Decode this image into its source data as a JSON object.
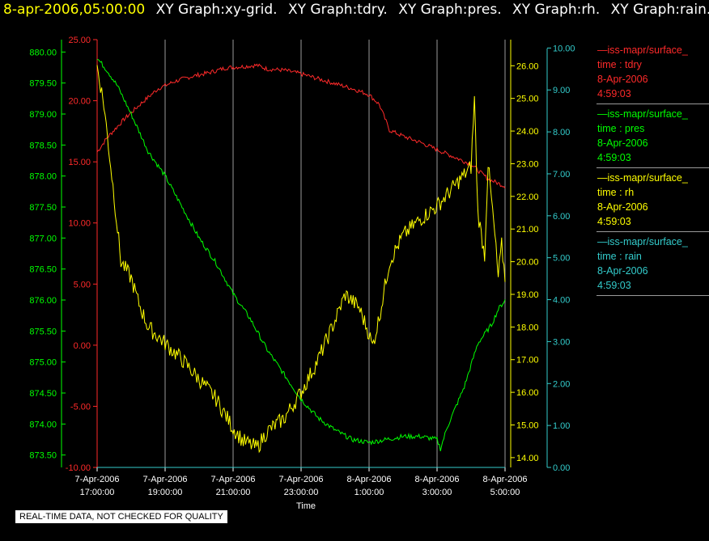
{
  "title": {
    "datetime": "8-apr-2006,05:00:00",
    "graphs": [
      "XY Graph:xy-grid.",
      "XY Graph:tdry.",
      "XY Graph:pres.",
      "XY Graph:rh.",
      "XY Graph:rain."
    ]
  },
  "colors": {
    "datetime": "#ffff00",
    "graph_title": "#ffffff",
    "tdry": "#ff2a2a",
    "pres": "#00ff00",
    "rh": "#ffff00",
    "rain": "#33cccc",
    "grid": "#9a9a9a",
    "background": "#000000"
  },
  "legend": [
    {
      "line1": "—iss-mapr/surface_",
      "line2": "time : tdry",
      "line3": "8-Apr-2006",
      "line4": "4:59:03",
      "color": "#ff2a2a"
    },
    {
      "line1": "—iss-mapr/surface_",
      "line2": "time : pres",
      "line3": "8-Apr-2006",
      "line4": "4:59:03",
      "color": "#00ff00"
    },
    {
      "line1": "—iss-mapr/surface_",
      "line2": "time : rh",
      "line3": "8-Apr-2006",
      "line4": "4:59:03",
      "color": "#ffff00"
    },
    {
      "line1": "—iss-mapr/surface_",
      "line2": "time : rain",
      "line3": "8-Apr-2006",
      "line4": "4:59:03",
      "color": "#33cccc"
    }
  ],
  "qc_note": "REAL-TIME DATA, NOT CHECKED FOR QUALITY",
  "chart_data": {
    "type": "line",
    "xlabel": "Time",
    "x_ticks": [
      {
        "date": "7-Apr-2006",
        "time": "17:00:00",
        "hours": 0
      },
      {
        "date": "7-Apr-2006",
        "time": "19:00:00",
        "hours": 2
      },
      {
        "date": "7-Apr-2006",
        "time": "21:00:00",
        "hours": 4
      },
      {
        "date": "7-Apr-2006",
        "time": "23:00:00",
        "hours": 6
      },
      {
        "date": "8-Apr-2006",
        "time": "1:00:00",
        "hours": 8
      },
      {
        "date": "8-Apr-2006",
        "time": "3:00:00",
        "hours": 10
      },
      {
        "date": "8-Apr-2006",
        "time": "5:00:00",
        "hours": 12
      }
    ],
    "xlim_hours": [
      0,
      12
    ],
    "grid": "vertical",
    "axes": {
      "tdry": {
        "ylim": [
          -10,
          25
        ],
        "ticks": [
          "25.00",
          "20.00",
          "15.00",
          "10.00",
          "5.00",
          "0.00",
          "-5.00",
          "-10.00"
        ]
      },
      "pres": {
        "ylim": [
          873.3,
          880.2
        ],
        "ticks": [
          "880.00",
          "879.50",
          "879.00",
          "878.50",
          "878.00",
          "877.50",
          "877.00",
          "876.50",
          "876.00",
          "875.50",
          "875.00",
          "874.50",
          "874.00",
          "873.50"
        ]
      },
      "rh": {
        "ylim": [
          13.7,
          26.8
        ],
        "ticks": [
          "26.00",
          "25.00",
          "24.00",
          "23.00",
          "22.00",
          "21.00",
          "20.00",
          "19.00",
          "18.00",
          "17.00",
          "16.00",
          "15.00",
          "14.00"
        ]
      },
      "rain": {
        "ylim": [
          0,
          10.2
        ],
        "ticks": [
          "10.00",
          "9.00",
          "8.00",
          "7.00",
          "6.00",
          "5.00",
          "4.00",
          "3.00",
          "2.00",
          "1.00",
          "0.00"
        ]
      }
    },
    "series": [
      {
        "key": "tdry",
        "name": "time : tdry",
        "noise": 0.18,
        "points": [
          [
            0,
            15.8
          ],
          [
            0.3,
            17.0
          ],
          [
            0.8,
            18.5
          ],
          [
            1.3,
            19.8
          ],
          [
            1.8,
            21.0
          ],
          [
            2.3,
            21.6
          ],
          [
            2.8,
            22.0
          ],
          [
            3.3,
            22.3
          ],
          [
            3.8,
            22.7
          ],
          [
            4.3,
            22.8
          ],
          [
            4.7,
            22.9
          ],
          [
            5.0,
            22.6
          ],
          [
            5.5,
            22.5
          ],
          [
            6.0,
            22.2
          ],
          [
            6.5,
            21.8
          ],
          [
            7.0,
            21.4
          ],
          [
            7.5,
            21.0
          ],
          [
            8.0,
            20.5
          ],
          [
            8.3,
            19.7
          ],
          [
            8.6,
            17.6
          ],
          [
            9.0,
            17.1
          ],
          [
            9.5,
            16.6
          ],
          [
            10.0,
            16.0
          ],
          [
            10.5,
            15.4
          ],
          [
            11.0,
            14.8
          ],
          [
            11.5,
            13.6
          ],
          [
            12.0,
            13.0
          ]
        ]
      },
      {
        "key": "pres",
        "name": "time : pres",
        "noise": 0.04,
        "points": [
          [
            0,
            879.9
          ],
          [
            0.3,
            879.7
          ],
          [
            0.6,
            879.45
          ],
          [
            1.0,
            879.0
          ],
          [
            1.5,
            878.4
          ],
          [
            2.0,
            878.0
          ],
          [
            2.5,
            877.5
          ],
          [
            3.0,
            877.0
          ],
          [
            3.5,
            876.6
          ],
          [
            4.0,
            876.1
          ],
          [
            4.5,
            875.7
          ],
          [
            5.0,
            875.2
          ],
          [
            5.5,
            874.8
          ],
          [
            6.0,
            874.4
          ],
          [
            6.5,
            874.1
          ],
          [
            7.0,
            873.9
          ],
          [
            7.5,
            873.75
          ],
          [
            8.0,
            873.7
          ],
          [
            8.5,
            873.75
          ],
          [
            9.0,
            873.8
          ],
          [
            9.5,
            873.8
          ],
          [
            10.0,
            873.75
          ],
          [
            10.1,
            873.6
          ],
          [
            10.3,
            873.95
          ],
          [
            10.8,
            874.6
          ],
          [
            11.2,
            875.3
          ],
          [
            11.6,
            875.6
          ],
          [
            11.8,
            875.85
          ],
          [
            12.0,
            876.0
          ]
        ]
      },
      {
        "key": "rh",
        "name": "time : rh",
        "noise": 0.25,
        "points": [
          [
            0,
            26.0
          ],
          [
            0.2,
            24.8
          ],
          [
            0.5,
            22.0
          ],
          [
            0.7,
            20.0
          ],
          [
            1.0,
            19.5
          ],
          [
            1.2,
            18.8
          ],
          [
            1.5,
            18.0
          ],
          [
            2.0,
            17.5
          ],
          [
            2.5,
            17.0
          ],
          [
            3.0,
            16.4
          ],
          [
            3.5,
            15.8
          ],
          [
            4.0,
            14.9
          ],
          [
            4.3,
            14.5
          ],
          [
            4.7,
            14.3
          ],
          [
            5.0,
            14.8
          ],
          [
            5.5,
            15.2
          ],
          [
            6.0,
            16.0
          ],
          [
            6.5,
            17.0
          ],
          [
            7.0,
            18.2
          ],
          [
            7.3,
            19.0
          ],
          [
            7.7,
            18.6
          ],
          [
            8.0,
            17.8
          ],
          [
            8.1,
            17.4
          ],
          [
            8.3,
            18.3
          ],
          [
            8.6,
            20.0
          ],
          [
            9.0,
            20.8
          ],
          [
            9.5,
            21.3
          ],
          [
            10.0,
            21.7
          ],
          [
            10.5,
            22.3
          ],
          [
            11.0,
            22.9
          ],
          [
            11.1,
            25.0
          ],
          [
            11.2,
            21.5
          ],
          [
            11.4,
            20.2
          ],
          [
            11.5,
            23.0
          ],
          [
            11.7,
            20.8
          ],
          [
            11.8,
            19.5
          ],
          [
            11.9,
            20.5
          ],
          [
            12.0,
            19.5
          ]
        ]
      },
      {
        "key": "rain",
        "name": "time : rain",
        "noise": 0,
        "points": [
          [
            0,
            0.0
          ],
          [
            12.0,
            0.0
          ]
        ]
      }
    ]
  }
}
